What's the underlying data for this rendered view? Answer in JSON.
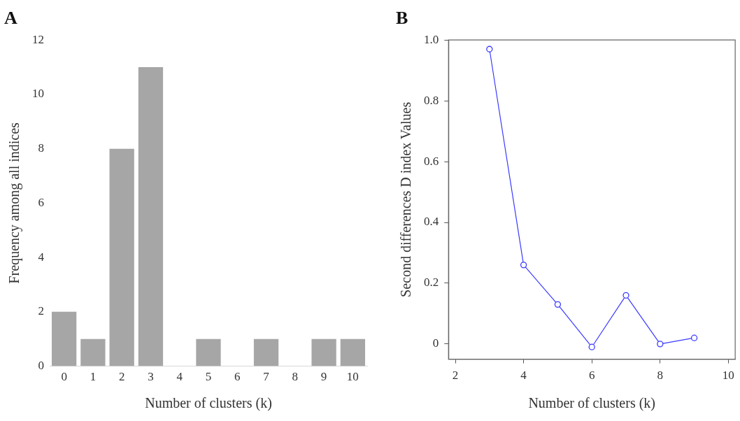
{
  "chart_data": [
    {
      "type": "bar",
      "title": "A",
      "xlabel": "Number of clusters (k)",
      "ylabel": "Frequency among all indices",
      "categories": [
        "0",
        "1",
        "2",
        "3",
        "4",
        "5",
        "6",
        "7",
        "8",
        "9",
        "10"
      ],
      "values": [
        2,
        1,
        8,
        11,
        0,
        1,
        0,
        1,
        0,
        1,
        1
      ],
      "color": "#a6a6a6",
      "ylim": [
        0,
        12
      ],
      "yticks": [
        0,
        2,
        4,
        6,
        8,
        10,
        12
      ],
      "grid": false,
      "legend": false
    },
    {
      "type": "line",
      "title": "B",
      "xlabel": "Number of clusters (k)",
      "ylabel": "Second differences D index Values",
      "x": [
        3,
        4,
        5,
        6,
        7,
        8,
        9
      ],
      "values": [
        0.97,
        0.26,
        0.13,
        -0.01,
        0.16,
        0.0,
        0.02
      ],
      "color": "#3a3aff",
      "xlim": [
        1.8,
        10.2
      ],
      "xticks": [
        2,
        4,
        6,
        8,
        10
      ],
      "ylim": [
        -0.05,
        1.0
      ],
      "yticks": [
        {
          "value": 0,
          "label": "0"
        },
        0.2,
        0.4,
        0.6,
        0.8,
        {
          "value": 1.0,
          "label": "1.0"
        }
      ],
      "grid": false,
      "legend": false,
      "marker": "circle",
      "line_style": "solid"
    }
  ]
}
